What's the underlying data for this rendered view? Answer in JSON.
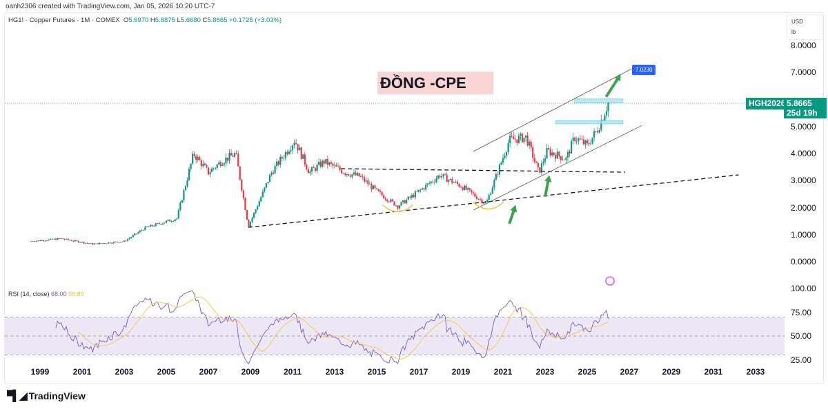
{
  "credit": "oanh2306 created with TradingView.com, Jan 05, 2026 10:20 UTC-7",
  "legend": {
    "symbol": "HG1! · Copper Futures · 1M · COMEX",
    "o_label": "O",
    "o": "5.6970",
    "h_label": "H",
    "h": "5.8875",
    "l_label": "L",
    "l": "5.6680",
    "c_label": "C",
    "c": "5.8665",
    "change": "+0.1725 (+3.03%)"
  },
  "units": {
    "currency": "USD",
    "unit": "lb"
  },
  "price_axis": [
    "8.0000",
    "7.0000",
    "5.0000",
    "4.0000",
    "3.0000",
    "2.0000",
    "1.0000",
    "0.0000"
  ],
  "price_axis_values": [
    8,
    7,
    5,
    4,
    3,
    2,
    1,
    0
  ],
  "current": {
    "symbol": "HGH2026",
    "price": "5.8665",
    "countdown": "25d 19h",
    "value": 5.8665
  },
  "target": {
    "label": "7.0230",
    "value": 7.023
  },
  "annotation": "ĐỒNG -CPE",
  "rsi": {
    "legend": "RSI (14, close)",
    "value": "68.00",
    "ma": "58.89",
    "axis": [
      "100.00",
      "75.00",
      "50.00",
      "25.00"
    ],
    "axis_values": [
      100,
      75,
      50,
      25
    ]
  },
  "x_axis": [
    "1999",
    "2001",
    "2003",
    "2005",
    "2007",
    "2009",
    "2011",
    "2013",
    "2015",
    "2017",
    "2019",
    "2021",
    "2023",
    "2025",
    "2027",
    "2029",
    "2031",
    "2033"
  ],
  "colors": {
    "up": "#089981",
    "down": "#f23645",
    "rsi": "#7e57c2",
    "rsi_ma": "#f5c542",
    "band": "#ede7f6",
    "accent": "#2962ff"
  },
  "brand": "TradingView",
  "chart_data": {
    "type": "candlestick",
    "price_path": [
      [
        1998.5,
        0.75
      ],
      [
        2000,
        0.85
      ],
      [
        2001.5,
        0.65
      ],
      [
        2003,
        0.75
      ],
      [
        2004,
        1.25
      ],
      [
        2005.5,
        1.6
      ],
      [
        2006.3,
        4.0
      ],
      [
        2007,
        3.3
      ],
      [
        2007.6,
        3.7
      ],
      [
        2008.3,
        4.0
      ],
      [
        2008.9,
        1.3
      ],
      [
        2010,
        3.3
      ],
      [
        2011.1,
        4.5
      ],
      [
        2011.8,
        3.3
      ],
      [
        2012.5,
        3.7
      ],
      [
        2013.5,
        3.3
      ],
      [
        2014.2,
        3.15
      ],
      [
        2015,
        2.6
      ],
      [
        2016,
        2.05
      ],
      [
        2017,
        2.6
      ],
      [
        2018,
        3.2
      ],
      [
        2019,
        2.8
      ],
      [
        2020.2,
        2.15
      ],
      [
        2021.3,
        4.5
      ],
      [
        2022.1,
        4.6
      ],
      [
        2022.7,
        3.3
      ],
      [
        2023.1,
        4.1
      ],
      [
        2024,
        3.8
      ],
      [
        2024.4,
        4.6
      ],
      [
        2025,
        4.3
      ],
      [
        2025.5,
        4.9
      ],
      [
        2026,
        5.87
      ]
    ],
    "trendlines": [
      {
        "name": "long-support",
        "from": [
          2008.9,
          1.27
        ],
        "to": [
          2032.2,
          3.21
        ],
        "style": "dashed"
      },
      {
        "name": "neckline",
        "from": [
          2013.3,
          3.44
        ],
        "to": [
          2026.8,
          3.31
        ],
        "style": "dashed"
      },
      {
        "name": "channel-upper",
        "from": [
          2019.6,
          4.08
        ],
        "to": [
          2027.1,
          7.13
        ],
        "style": "solid"
      },
      {
        "name": "channel-lower",
        "from": [
          2019.6,
          1.91
        ],
        "to": [
          2027.6,
          5.04
        ],
        "style": "solid"
      }
    ],
    "zones": [
      {
        "from": 2024.4,
        "to": 2026.7,
        "low": 5.9,
        "high": 6.02
      },
      {
        "from": 2023.5,
        "to": 2026.7,
        "low": 5.1,
        "high": 5.22
      }
    ],
    "arrows": [
      [
        2021.3,
        1.4,
        2021.6,
        2.1
      ],
      [
        2023.0,
        2.4,
        2023.2,
        3.2
      ],
      [
        2025.9,
        6.1,
        2026.6,
        6.95
      ]
    ]
  }
}
